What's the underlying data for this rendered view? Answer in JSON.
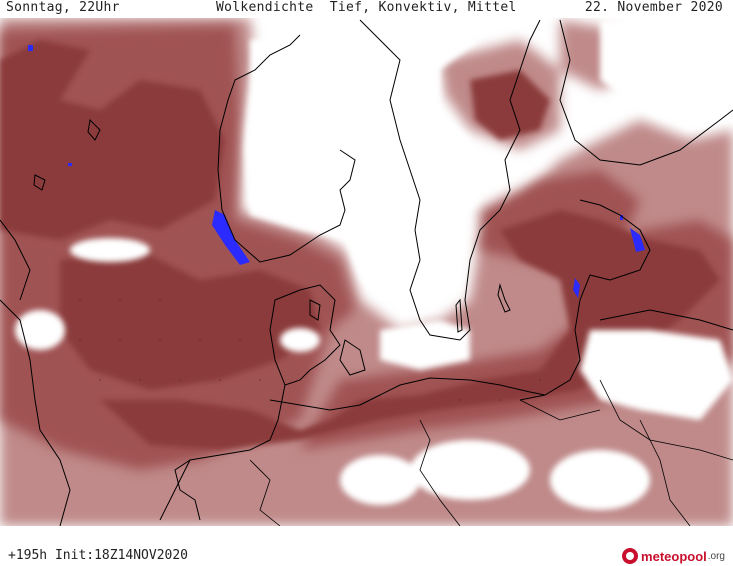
{
  "header": {
    "day_time": "Sonntag, 22Uhr",
    "title": "Wolkendichte  Tief, Konvektiv, Mittel",
    "date": "22. November 2020"
  },
  "footer": {
    "run_info": "+195h Init:18Z14NOV2020",
    "brand_name": "meteopool",
    "brand_tld": ".org"
  },
  "legend_colors": {
    "dense": "#8b3a3a",
    "medium": "#a05252",
    "light": "#c08a8a",
    "precip": "#2b2bff",
    "clear": "#ffffff",
    "coast": "#000000"
  },
  "map": {
    "type": "cloud-density",
    "region": "North Sea / Baltic / Scandinavia"
  }
}
